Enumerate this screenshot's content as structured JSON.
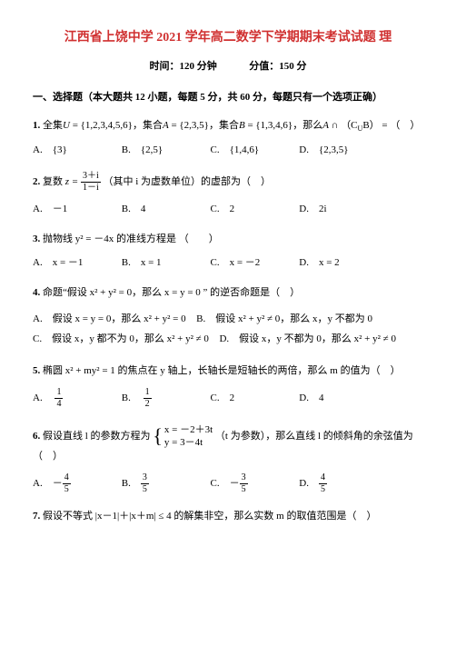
{
  "title": "江西省上饶中学 2021 学年高二数学下学期期末考试试题 理",
  "subtitle_time": "时间：120 分钟",
  "subtitle_score": "分值：150 分",
  "section1": "一、选择题（本大题共 12 小题，每题 5 分，共 60 分，每题只有一个选项正确）",
  "q1": {
    "num": "1.",
    "text_pre": "全集",
    "U": "U",
    "eq": " = {1,2,3,4,5,6}，集合",
    "A": "A",
    "eqA": " = {2,3,5}，集合",
    "B": "B",
    "eqB": " = {1,3,4,6}，那么",
    "AcapCuB": "A ∩",
    "CuB": "（C",
    "CuBsub": "U",
    "CuBend": "B） =",
    "paren": "（　）",
    "choices": {
      "A": "A.　{3}",
      "B": "B.　{2,5}",
      "C": "C.　{1,4,6}",
      "D": "D.　{2,3,5}"
    }
  },
  "q2": {
    "num": "2.",
    "pre": "复数",
    "z": "z =",
    "frac_num": "3＋i",
    "frac_den": "1－i",
    "post": "（其中 i 为虚数单位）的虚部为（　）",
    "choices": {
      "A": "A.　－1",
      "B": "B.　4",
      "C": "C.　2",
      "D": "D.　2i"
    }
  },
  "q3": {
    "num": "3.",
    "text": "抛物线 y² = －4x 的准线方程是 （　　）",
    "choices": {
      "A": "A.　x = －1",
      "B": "B.　x = 1",
      "C": "C.　x = －2",
      "D": "D.　x = 2"
    }
  },
  "q4": {
    "num": "4.",
    "text": "命题“假设 x² + y² = 0，那么 x = y = 0 ” 的逆否命题是（　）",
    "choices": {
      "A": "A.　假设 x = y = 0，那么 x² + y² = 0",
      "B": "B.　假设 x² + y² ≠ 0，那么 x，y 不都为 0",
      "C": "C.　假设 x，y 都不为 0，那么 x² + y² ≠ 0",
      "D": "D.　假设 x，y 不都为 0，那么 x² + y² ≠ 0"
    }
  },
  "q5": {
    "num": "5.",
    "text": "椭圆 x² + my² = 1 的焦点在 y 轴上，长轴长是短轴长的两倍，那么 m 的值为（　）",
    "choices": {
      "A": "A.　",
      "A_num": "1",
      "A_den": "4",
      "B": "B.　",
      "B_num": "1",
      "B_den": "2",
      "C": "C.　2",
      "D": "D.　4"
    }
  },
  "q6": {
    "num": "6.",
    "pre": "假设直线 l 的参数方程为",
    "sys_r1": "x = －2＋3t",
    "sys_r2": "y = 3－4t",
    "mid": "（t 为参数），那么直线 l 的倾斜角的余弦值为（　）",
    "choices": {
      "A": "A.　－",
      "A_num": "4",
      "A_den": "5",
      "B": "B.　",
      "B_num": "3",
      "B_den": "5",
      "C": "C.　－",
      "C_num": "3",
      "C_den": "5",
      "D": "D.　",
      "D_num": "4",
      "D_den": "5"
    }
  },
  "q7": {
    "num": "7.",
    "text": "假设不等式 |x－1|＋|x＋m| ≤ 4 的解集非空，那么实数 m 的取值范围是（　）"
  }
}
